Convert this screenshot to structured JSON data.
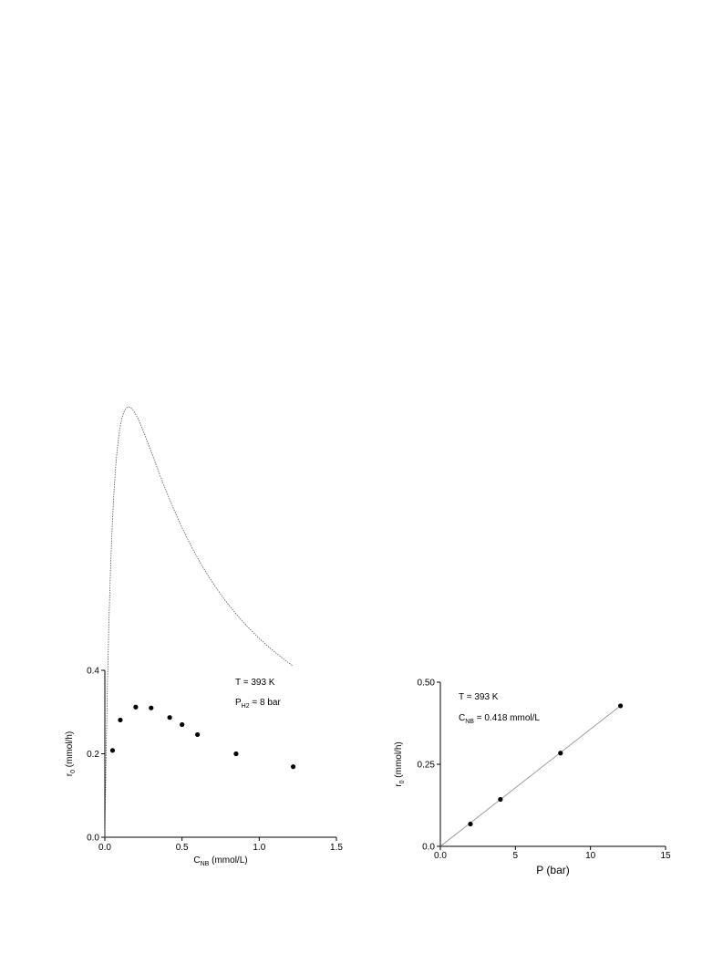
{
  "chart_data": [
    {
      "type": "scatter",
      "title": "",
      "xlabel": "C",
      "xlabel_sub": "NB",
      "xlabel_unit": " (mmol/L)",
      "ylabel": "r",
      "ylabel_sub": "0",
      "ylabel_unit": " (mmol/h)",
      "xlim": [
        0,
        1.5
      ],
      "ylim": [
        0,
        0.4
      ],
      "x_ticks": [
        0,
        0.5,
        1.0,
        1.5
      ],
      "x_tick_labels": [
        "0.0",
        "0.5",
        "1.0",
        "1.5"
      ],
      "y_ticks": [
        0,
        0.2,
        0.4
      ],
      "y_tick_labels": [
        "0.0",
        "0.2",
        "0.4"
      ],
      "grid": false,
      "legend": "none",
      "annotations": [
        {
          "main": "T = 393 K",
          "sub": "",
          "rest": ""
        },
        {
          "main": "P",
          "sub": "H2",
          "rest": " = 8 bar"
        }
      ],
      "series": [
        {
          "points": [
            {
              "x": 0.05,
              "y": 0.208
            },
            {
              "x": 0.1,
              "y": 0.281
            },
            {
              "x": 0.2,
              "y": 0.312
            },
            {
              "x": 0.3,
              "y": 0.31
            },
            {
              "x": 0.42,
              "y": 0.287
            },
            {
              "x": 0.5,
              "y": 0.27
            },
            {
              "x": 0.6,
              "y": 0.246
            },
            {
              "x": 0.85,
              "y": 0.2
            },
            {
              "x": 1.22,
              "y": 0.169
            }
          ]
        }
      ],
      "fit": {
        "form": "langmuir-hinshelwood",
        "k": 4.125,
        "K": 6.5
      }
    },
    {
      "type": "scatter",
      "title": "",
      "xlabel": "P",
      "xlabel_sub": "",
      "xlabel_unit": " (bar)",
      "ylabel": "r",
      "ylabel_sub": "0",
      "ylabel_unit": " (mmol/h)",
      "xlim": [
        0,
        15
      ],
      "ylim": [
        0,
        0.5
      ],
      "x_ticks": [
        0,
        5,
        10,
        15
      ],
      "x_tick_labels": [
        "0.0",
        "5",
        "10",
        "15"
      ],
      "y_ticks": [
        0,
        0.25,
        0.5
      ],
      "y_tick_labels": [
        "0.0",
        "0.25",
        "0.50"
      ],
      "grid": false,
      "legend": "none",
      "annotations": [
        {
          "main": "T = 393 K",
          "sub": "",
          "rest": ""
        },
        {
          "main": "C",
          "sub": "NB",
          "rest": " = 0.418 mmol/L"
        }
      ],
      "series": [
        {
          "points": [
            {
              "x": 2,
              "y": 0.068
            },
            {
              "x": 4,
              "y": 0.143
            },
            {
              "x": 8,
              "y": 0.284
            },
            {
              "x": 12,
              "y": 0.428
            }
          ]
        }
      ],
      "fit": {
        "form": "linear",
        "slope": 0.0357,
        "intercept": 0
      }
    }
  ]
}
